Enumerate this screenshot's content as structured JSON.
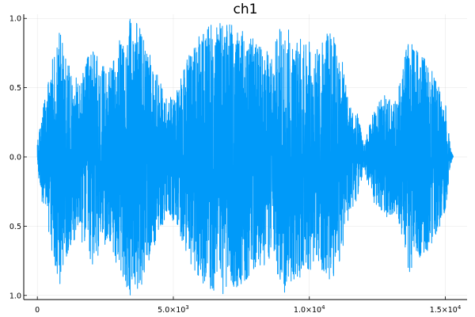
{
  "chart_data": {
    "type": "line",
    "title": "ch1",
    "xlabel": "",
    "ylabel": "",
    "xlim": [
      -500,
      15800
    ],
    "ylim": [
      -1.03,
      1.03
    ],
    "grid": true,
    "legend": "none",
    "series_color": "#009af9",
    "x_ticks": [
      {
        "value": 0,
        "label": "0",
        "sup": ""
      },
      {
        "value": 5000,
        "label": "5.0×10",
        "sup": "3"
      },
      {
        "value": 10000,
        "label": "1.0×10",
        "sup": "4"
      },
      {
        "value": 15000,
        "label": "1.5×10",
        "sup": "4"
      }
    ],
    "y_ticks": [
      {
        "value": -1.0,
        "label": "1.0"
      },
      {
        "value": -0.5,
        "label": "0.5"
      },
      {
        "value": 0.0,
        "label": "0.0"
      },
      {
        "value": 0.5,
        "label": "0.5"
      },
      {
        "value": 1.0,
        "label": "1.0"
      }
    ],
    "series": [
      {
        "samples": 15300,
        "x_step": 1,
        "amplitude_envelope": [
          {
            "x": 0,
            "amp": 0.1
          },
          {
            "x": 150,
            "amp": 0.3
          },
          {
            "x": 400,
            "amp": 0.55
          },
          {
            "x": 800,
            "amp": 0.95
          },
          {
            "x": 1100,
            "amp": 0.7
          },
          {
            "x": 1500,
            "amp": 0.55
          },
          {
            "x": 2000,
            "amp": 0.8
          },
          {
            "x": 2600,
            "amp": 0.6
          },
          {
            "x": 3100,
            "amp": 0.9
          },
          {
            "x": 3400,
            "amp": 1.0
          },
          {
            "x": 3800,
            "amp": 0.95
          },
          {
            "x": 4200,
            "amp": 0.7
          },
          {
            "x": 4800,
            "amp": 0.4
          },
          {
            "x": 5200,
            "amp": 0.55
          },
          {
            "x": 5700,
            "amp": 0.8
          },
          {
            "x": 6200,
            "amp": 0.95
          },
          {
            "x": 6800,
            "amp": 1.0
          },
          {
            "x": 7400,
            "amp": 0.95
          },
          {
            "x": 8000,
            "amp": 0.85
          },
          {
            "x": 8600,
            "amp": 0.75
          },
          {
            "x": 9000,
            "amp": 1.0
          },
          {
            "x": 9400,
            "amp": 0.9
          },
          {
            "x": 9900,
            "amp": 0.85
          },
          {
            "x": 10300,
            "amp": 0.8
          },
          {
            "x": 10800,
            "amp": 0.95
          },
          {
            "x": 11200,
            "amp": 0.7
          },
          {
            "x": 11500,
            "amp": 0.4
          },
          {
            "x": 11800,
            "amp": 0.3
          },
          {
            "x": 12000,
            "amp": 0.08
          },
          {
            "x": 12300,
            "amp": 0.3
          },
          {
            "x": 12700,
            "amp": 0.45
          },
          {
            "x": 13200,
            "amp": 0.4
          },
          {
            "x": 13600,
            "amp": 0.85
          },
          {
            "x": 14100,
            "amp": 0.75
          },
          {
            "x": 14600,
            "amp": 0.6
          },
          {
            "x": 15000,
            "amp": 0.4
          },
          {
            "x": 15200,
            "amp": 0.05
          },
          {
            "x": 15300,
            "amp": 0.0
          }
        ]
      }
    ]
  }
}
